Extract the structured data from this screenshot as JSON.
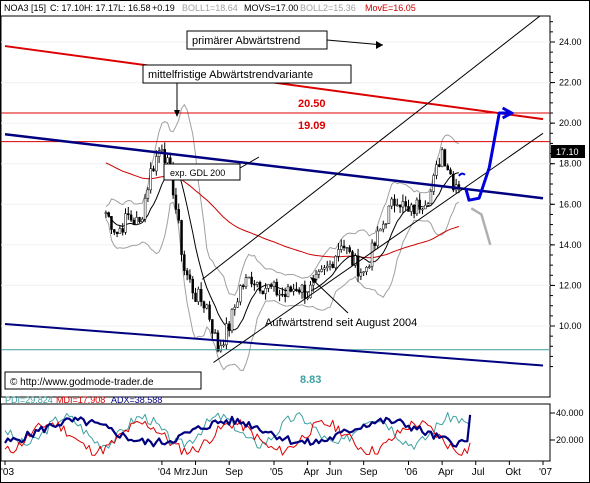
{
  "header": {
    "symbol": "NOA3 [15]",
    "close": "C: 17.10",
    "high": "H: 17.17",
    "low": "L: 16.58",
    "change": "+0.19",
    "boll1": "BOLL1=18.64",
    "movs": "MOVS=17.00",
    "boll2": "BOLL2=15.36",
    "move": "MovE=16.05"
  },
  "indicator_header": {
    "pdi": "PDI=29.824",
    "mdi": "MDI=17.908",
    "adx": "ADX=38.588"
  },
  "annotations": {
    "primary_trend": "primärer Abwärtstrend",
    "medium_trend": "mittelfristige Abwärtstrendvariante",
    "gdl": "exp. GDL 200",
    "uptrend": "Aufwärtstrend seit August 2004",
    "copyright": "© http://www.godmode-trader.de",
    "level_2050": "20.50",
    "level_1909": "19.09",
    "level_883": "8.83",
    "last_price": "17.10"
  },
  "colors": {
    "price": "#000000",
    "bollinger": "#a0a0a0",
    "movs": "#000000",
    "move_ema": "#cc0000",
    "primary_trendline": "#dd0000",
    "resistance": "#dd0000",
    "channel_main": "#000080",
    "channel_upper": "#000000",
    "projection_up": "#0000dd",
    "projection_down": "#b0b0b0",
    "support_883": "#40a0a0",
    "pdi": "#40a0a0",
    "mdi": "#dd0000",
    "adx": "#000080"
  },
  "chart_data": [
    {
      "type": "candlestick",
      "title": "NOA3 [15]",
      "x_tick_labels": [
        "'03",
        "'04 Mrz",
        "Jun",
        "Sep",
        "'05",
        "Apr",
        "Jun",
        "Sep",
        "'06",
        "Apr",
        "Jul",
        "Okt",
        "'07"
      ],
      "y_ticks": [
        10.0,
        12.0,
        14.0,
        16.0,
        18.0,
        20.0,
        22.0,
        24.0
      ],
      "ylim": [
        8.0,
        25.4
      ],
      "horizontal_levels": [
        20.5,
        19.09,
        8.83
      ],
      "last_price": 17.1,
      "price_series": [
        {
          "date": "2003-10",
          "close": 15.6
        },
        {
          "date": "2003-11",
          "close": 14.6
        },
        {
          "date": "2003-12",
          "close": 15.4
        },
        {
          "date": "2004-01",
          "close": 15.0
        },
        {
          "date": "2004-02",
          "close": 17.6
        },
        {
          "date": "2004-03",
          "close": 19.0
        },
        {
          "date": "2004-04",
          "close": 16.8
        },
        {
          "date": "2004-05",
          "close": 12.8
        },
        {
          "date": "2004-06",
          "close": 11.5
        },
        {
          "date": "2004-07",
          "close": 11.0
        },
        {
          "date": "2004-08",
          "close": 8.9
        },
        {
          "date": "2004-09",
          "close": 10.0
        },
        {
          "date": "2004-10",
          "close": 11.9
        },
        {
          "date": "2004-11",
          "close": 12.4
        },
        {
          "date": "2004-12",
          "close": 12.0
        },
        {
          "date": "2005-02",
          "close": 11.5
        },
        {
          "date": "2005-03",
          "close": 12.0
        },
        {
          "date": "2005-04",
          "close": 11.6
        },
        {
          "date": "2005-06",
          "close": 13.0
        },
        {
          "date": "2005-07",
          "close": 14.2
        },
        {
          "date": "2005-08",
          "close": 13.2
        },
        {
          "date": "2005-09",
          "close": 12.6
        },
        {
          "date": "2005-10",
          "close": 14.0
        },
        {
          "date": "2005-11",
          "close": 15.4
        },
        {
          "date": "2005-12",
          "close": 16.4
        },
        {
          "date": "2006-01",
          "close": 15.5
        },
        {
          "date": "2006-03",
          "close": 16.6
        },
        {
          "date": "2006-04",
          "close": 18.7
        },
        {
          "date": "2006-05",
          "close": 17.1
        }
      ],
      "series": [
        {
          "name": "BOLL1",
          "values": [
            18.64
          ]
        },
        {
          "name": "MOVS",
          "values": [
            17.0
          ]
        },
        {
          "name": "BOLL2",
          "values": [
            15.36
          ]
        },
        {
          "name": "MovE",
          "values": [
            16.05
          ]
        }
      ]
    },
    {
      "type": "line",
      "title": "",
      "y_ticks": [
        20000,
        40000
      ],
      "y_tick_labels": [
        "20.000",
        "40.000"
      ],
      "series": [
        {
          "name": "PDI",
          "last": 29.824
        },
        {
          "name": "MDI",
          "last": 17.908
        },
        {
          "name": "ADX",
          "last": 38.588
        }
      ]
    }
  ]
}
